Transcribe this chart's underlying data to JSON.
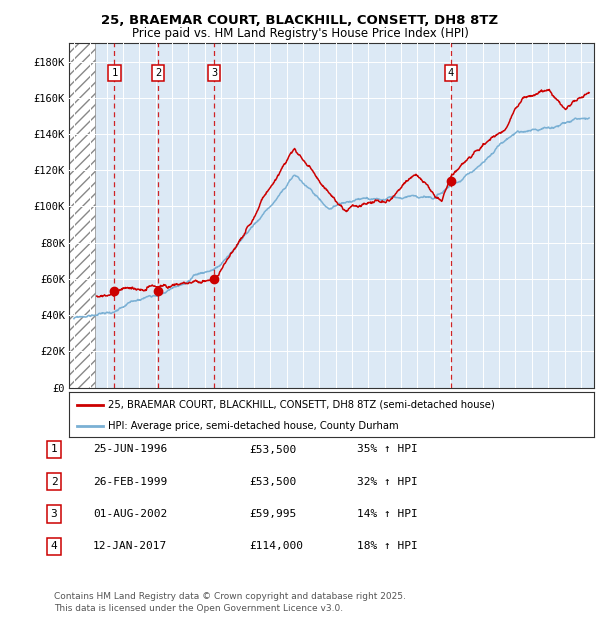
{
  "title_line1": "25, BRAEMAR COURT, BLACKHILL, CONSETT, DH8 8TZ",
  "title_line2": "Price paid vs. HM Land Registry's House Price Index (HPI)",
  "ylim": [
    0,
    190000
  ],
  "yticks": [
    0,
    20000,
    40000,
    60000,
    80000,
    100000,
    120000,
    140000,
    160000,
    180000
  ],
  "ytick_labels": [
    "£0",
    "£20K",
    "£40K",
    "£60K",
    "£80K",
    "£100K",
    "£120K",
    "£140K",
    "£160K",
    "£180K"
  ],
  "xlim_start": 1993.7,
  "xlim_end": 2025.8,
  "background_color": "#dce9f5",
  "hatch_area_end": 1995.3,
  "sale_dates": [
    1996.48,
    1999.15,
    2002.58,
    2017.03
  ],
  "sale_prices": [
    53500,
    53500,
    59995,
    114000
  ],
  "sale_labels": [
    "1",
    "2",
    "3",
    "4"
  ],
  "legend_label_red": "25, BRAEMAR COURT, BLACKHILL, CONSETT, DH8 8TZ (semi-detached house)",
  "legend_label_blue": "HPI: Average price, semi-detached house, County Durham",
  "table_data": [
    [
      "1",
      "25-JUN-1996",
      "£53,500",
      "35% ↑ HPI"
    ],
    [
      "2",
      "26-FEB-1999",
      "£53,500",
      "32% ↑ HPI"
    ],
    [
      "3",
      "01-AUG-2002",
      "£59,995",
      "14% ↑ HPI"
    ],
    [
      "4",
      "12-JAN-2017",
      "£114,000",
      "18% ↑ HPI"
    ]
  ],
  "footnote": "Contains HM Land Registry data © Crown copyright and database right 2025.\nThis data is licensed under the Open Government Licence v3.0.",
  "red_color": "#cc0000",
  "hpi_color": "#7ab0d4"
}
